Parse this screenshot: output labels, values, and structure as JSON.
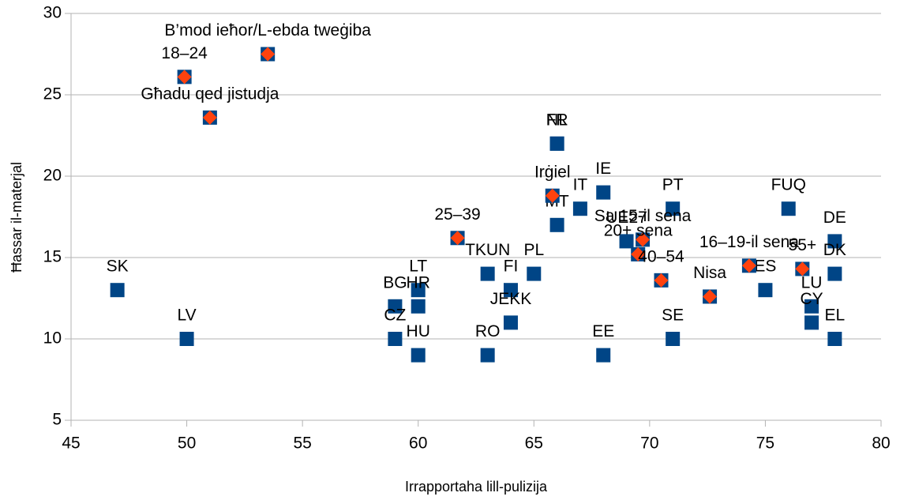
{
  "chart_data": {
    "type": "scatter",
    "xlabel": "Irrapportaha lill-pulizija",
    "ylabel": "Ħassar il-materjal",
    "xlim": [
      45,
      80
    ],
    "xticks": [
      45,
      50,
      55,
      60,
      65,
      70,
      75,
      80
    ],
    "ylim": [
      5,
      30
    ],
    "yticks": [
      5,
      10,
      15,
      20,
      25,
      30
    ],
    "grid": true,
    "series": [
      {
        "color": "#004586",
        "labels": [
          "SK",
          "LV",
          "BG",
          "CZ",
          "LT",
          "HR",
          "HU",
          "TKUN",
          "PL",
          "FI",
          "JEKK",
          "RO",
          "NL",
          "FR",
          "MT",
          "IT",
          "IE",
          "EE",
          "UE27",
          "PT",
          "SE",
          "FUQ",
          "ES",
          "DE",
          "DK",
          "LU",
          "CY",
          "EL"
        ],
        "x": [
          47,
          50,
          59,
          59,
          60,
          60,
          60,
          63,
          65,
          64,
          64,
          63,
          66,
          66,
          66,
          67,
          68,
          68,
          69,
          71,
          71,
          76,
          75,
          78,
          78,
          77,
          77,
          78
        ],
        "values": [
          13,
          10,
          12,
          10,
          13,
          12,
          9,
          14,
          14,
          13,
          11,
          9,
          22,
          22,
          17,
          18,
          19,
          9,
          16,
          18,
          10,
          18,
          13,
          16,
          14,
          12,
          11,
          10
        ]
      },
      {
        "color": "#ff420e",
        "labels": [
          "B’mod ieħor/L-ebda tweġiba",
          "18–24",
          "Għadu qed jistudja",
          "25–39",
          "Irġiel",
          "Sa 15-il sena",
          "20+ sena",
          "40–54",
          "Nisa",
          "16–19-il sena",
          "55+"
        ],
        "x": [
          53.5,
          49.9,
          51,
          61.7,
          65.8,
          69.7,
          69.5,
          70.5,
          72.6,
          74.3,
          76.6
        ],
        "values": [
          27.5,
          26.1,
          23.6,
          16.2,
          18.8,
          16.1,
          15.2,
          13.6,
          12.6,
          14.5,
          14.3
        ]
      }
    ]
  }
}
